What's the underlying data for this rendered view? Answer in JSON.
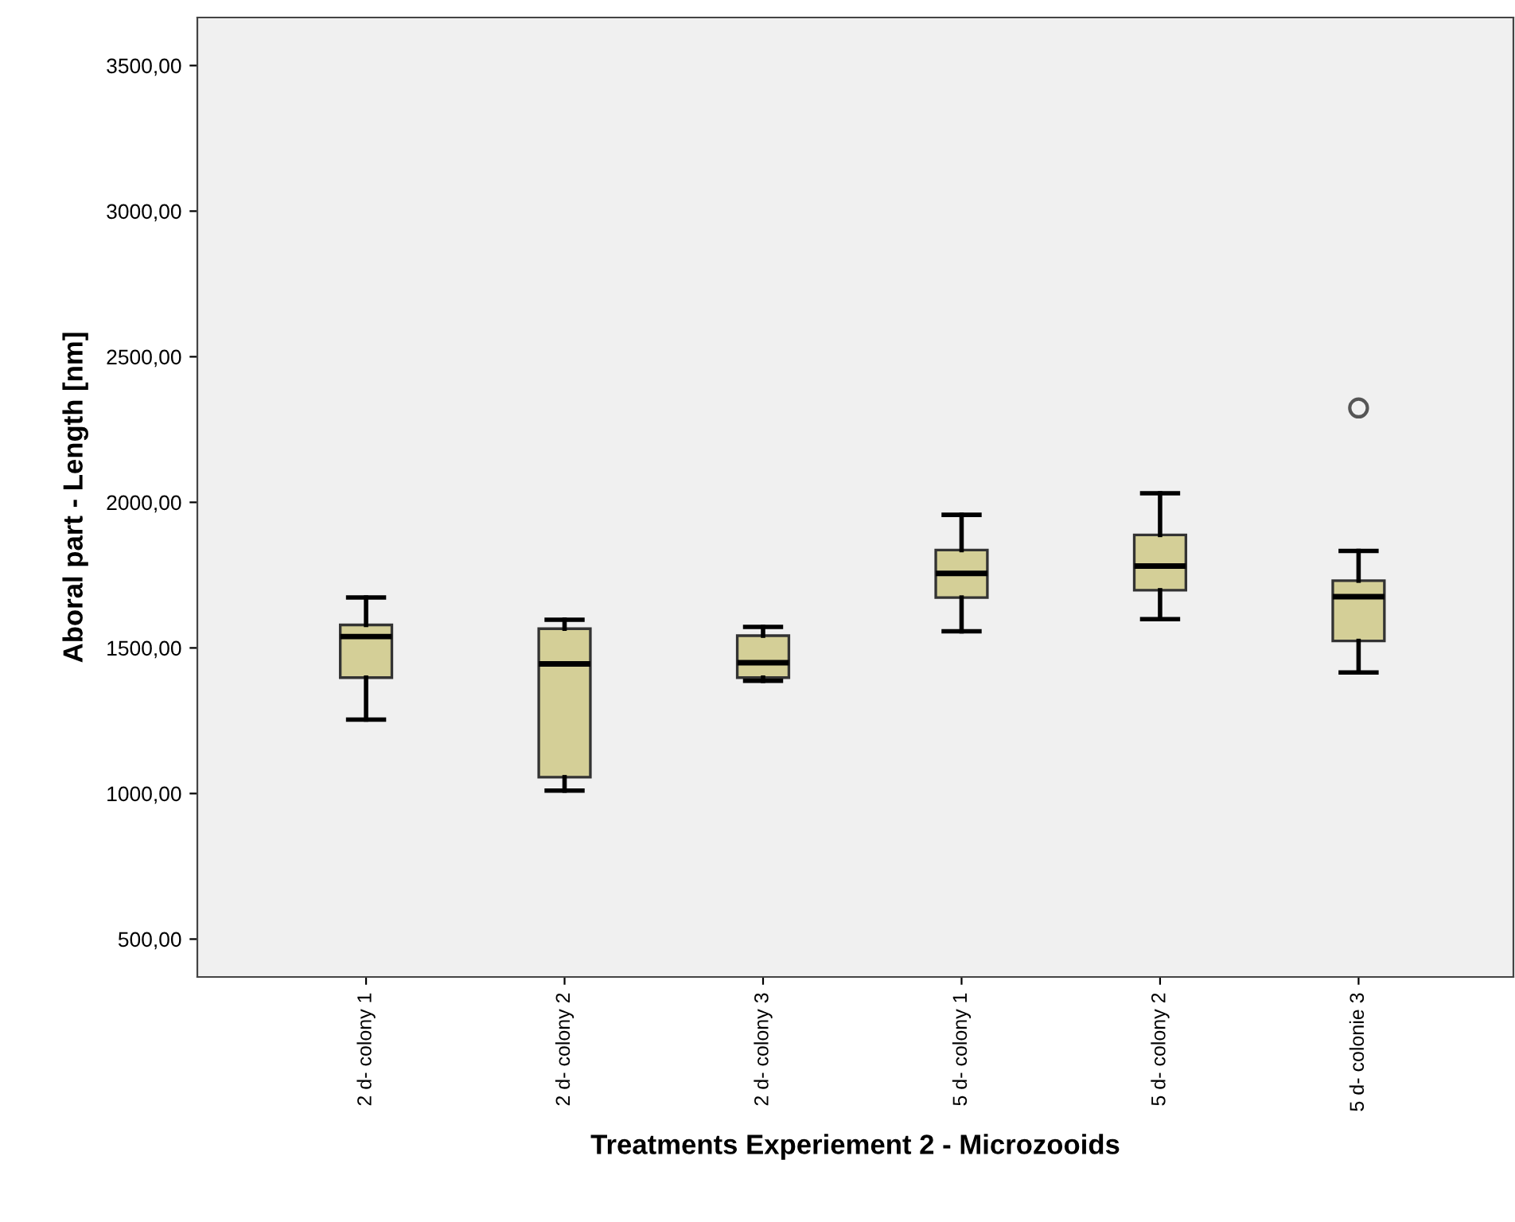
{
  "chart_data": {
    "type": "box",
    "xlabel": "Treatments Experiement 2 - Microzooids",
    "ylabel": "Aboral part - Length [nm]",
    "categories": [
      "2 d- colony 1",
      "2 d- colony 2",
      "2 d- colony 3",
      "5 d- colony 1",
      "5 d- colony 2",
      "5 d- colonie 3"
    ],
    "color": "#d4cf97",
    "grid": false,
    "marker": "circle",
    "boxes": [
      {
        "low": 1254,
        "q1": 1398,
        "median": 1539,
        "q3": 1579,
        "high": 1673
      },
      {
        "low": 1010,
        "q1": 1056,
        "median": 1445,
        "q3": 1566,
        "high": 1597
      },
      {
        "low": 1387,
        "q1": 1398,
        "median": 1449,
        "q3": 1542,
        "high": 1572
      },
      {
        "low": 1557,
        "q1": 1673,
        "median": 1756,
        "q3": 1836,
        "high": 1957
      },
      {
        "low": 1599,
        "q1": 1698,
        "median": 1781,
        "q3": 1888,
        "high": 2031
      },
      {
        "low": 1416,
        "q1": 1524,
        "median": 1676,
        "q3": 1731,
        "high": 1833,
        "outliers": [
          2324
        ]
      }
    ],
    "ylim": [
      370,
      3665
    ],
    "yticks": [
      {
        "value": 500,
        "label": "500,00"
      },
      {
        "value": 1000,
        "label": "1000,00"
      },
      {
        "value": 1500,
        "label": "1500,00"
      },
      {
        "value": 2000,
        "label": "2000,00"
      },
      {
        "value": 2500,
        "label": "2500,00"
      },
      {
        "value": 3000,
        "label": "3000,00"
      },
      {
        "value": 3500,
        "label": "3500,00"
      }
    ]
  }
}
